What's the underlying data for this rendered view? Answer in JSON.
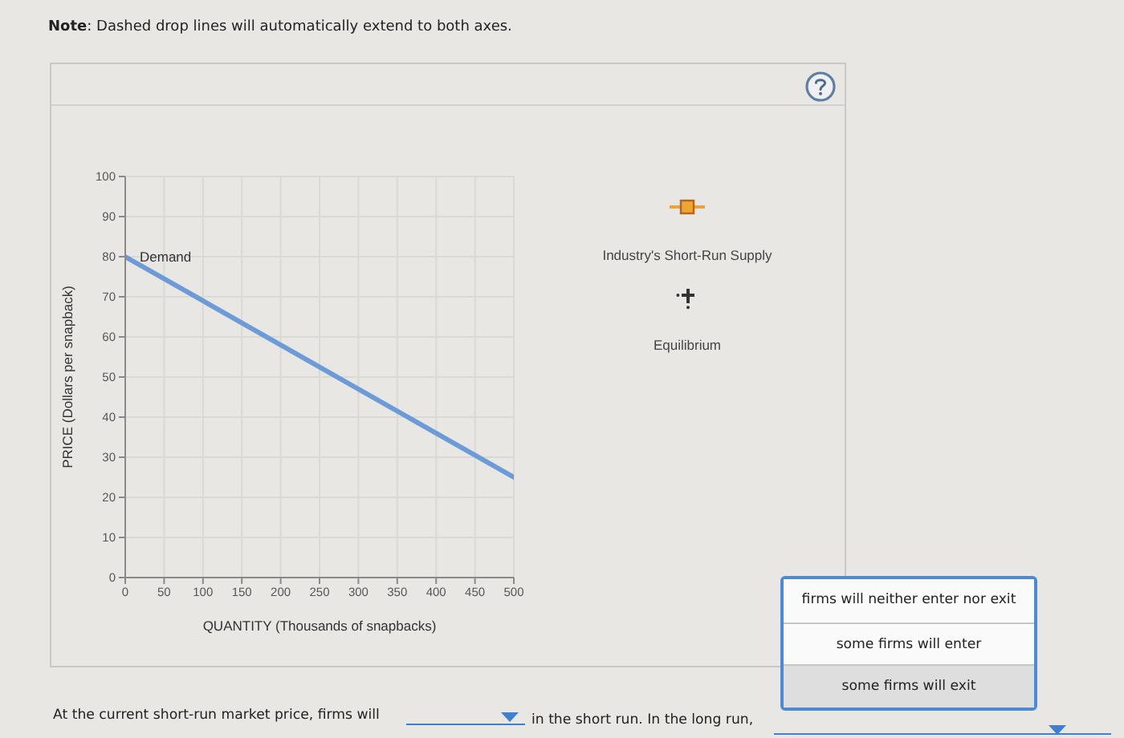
{
  "chart_data": {
    "type": "line",
    "xlabel": "QUANTITY (Thousands of snapbacks)",
    "ylabel": "PRICE (Dollars per snapback)",
    "x": [
      0,
      500
    ],
    "series": [
      {
        "name": "Demand",
        "color": "#6d9bd8",
        "values": [
          80,
          25
        ]
      }
    ],
    "xlim": [
      0,
      500
    ],
    "xticks": [
      0,
      50,
      100,
      150,
      200,
      250,
      300,
      350,
      400,
      450,
      500
    ],
    "ylim": [
      0,
      100
    ],
    "yticks": [
      0,
      10,
      20,
      30,
      40,
      50,
      60,
      70,
      80,
      90,
      100
    ],
    "grid": true,
    "marker": "none",
    "line_style": "solid",
    "annotations": [
      "Note: Dashed drop lines will automatically extend to both axes.",
      "Industry's Short-Run Supply",
      "Equilibrium",
      "At the current short-run market price, firms will",
      "in the short run. In the long run,",
      "firms will neither enter nor exit",
      "some firms will enter",
      "some firms will exit"
    ]
  }
}
